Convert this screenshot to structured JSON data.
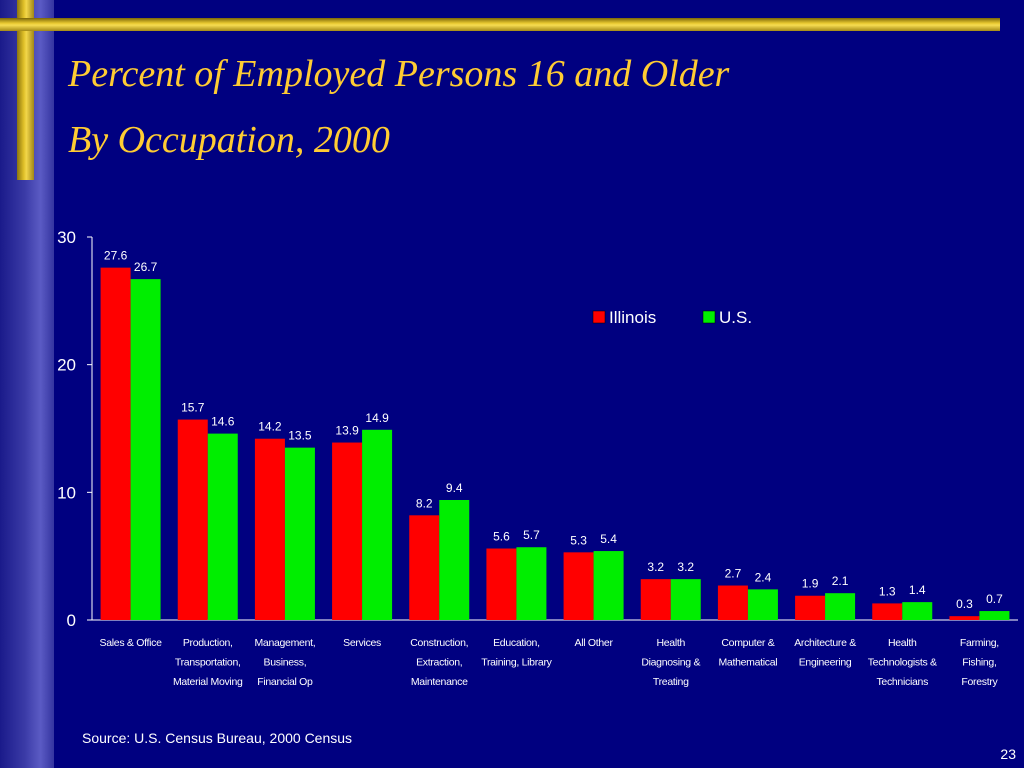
{
  "slide": {
    "title_line1": "Percent of Employed Persons 16 and Older",
    "title_line2": "By Occupation, 2000",
    "source": "Source:  U.S. Census Bureau, 2000 Census",
    "page_number": "23"
  },
  "colors": {
    "background": "#000080",
    "title": "#ffcc33",
    "illinois": "#ff0000",
    "us": "#00ee00",
    "text": "#ffffff"
  },
  "chart_data": {
    "type": "bar",
    "title": "",
    "xlabel": "",
    "ylabel": "",
    "ylim": [
      0,
      30
    ],
    "yticks": [
      "0",
      "10",
      "20",
      "30"
    ],
    "grid": false,
    "legend_position": "top-right",
    "categories": [
      [
        "Sales & Office"
      ],
      [
        "Production,",
        "Transportation,",
        "Material Moving"
      ],
      [
        "Management,",
        "Business,",
        "Financial Op"
      ],
      [
        "Services"
      ],
      [
        "Construction,",
        "Extraction,",
        "Maintenance"
      ],
      [
        "Education,",
        "Training, Library"
      ],
      [
        "All Other"
      ],
      [
        "Health",
        "Diagnosing &",
        "Treating"
      ],
      [
        "Computer &",
        "Mathematical"
      ],
      [
        "Architecture &",
        "Engineering"
      ],
      [
        "Health",
        "Technologists &",
        "Technicians"
      ],
      [
        "Farming,",
        "Fishing,",
        "Forestry"
      ]
    ],
    "series": [
      {
        "name": "Illinois",
        "color": "#ff0000",
        "values": [
          27.6,
          15.7,
          14.2,
          13.9,
          8.2,
          5.6,
          5.3,
          3.2,
          2.7,
          1.9,
          1.3,
          0.3
        ]
      },
      {
        "name": "U.S.",
        "color": "#00ee00",
        "values": [
          26.7,
          14.6,
          13.5,
          14.9,
          9.4,
          5.7,
          5.4,
          3.2,
          2.4,
          2.1,
          1.4,
          0.7
        ]
      }
    ]
  }
}
